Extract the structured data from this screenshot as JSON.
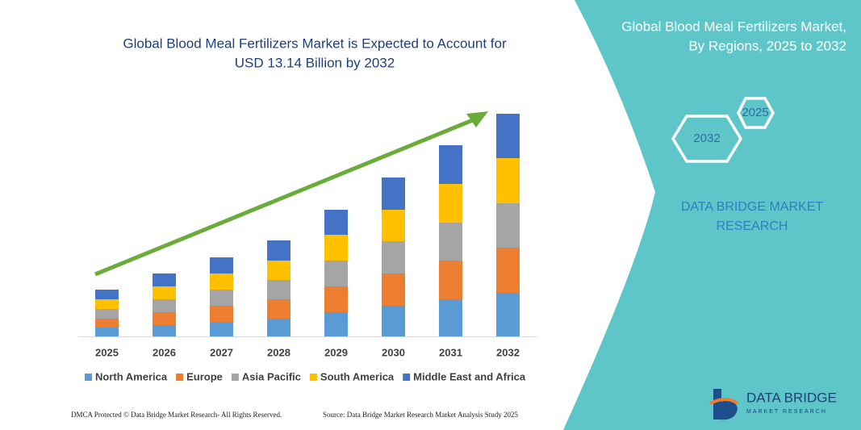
{
  "chart_data": {
    "type": "bar",
    "stacked": true,
    "title_lines": [
      "Global Blood Meal Fertilizers Market is Expected to Account for",
      "USD 13.14 Billion by 2032"
    ],
    "categories": [
      "2025",
      "2026",
      "2027",
      "2028",
      "2029",
      "2030",
      "2031",
      "2032"
    ],
    "series": [
      {
        "name": "North America",
        "color": "#5b9bd5",
        "values": [
          11,
          14,
          18,
          22,
          30,
          38,
          46,
          54
        ]
      },
      {
        "name": "Europe",
        "color": "#ed7d31",
        "values": [
          11,
          16,
          20,
          24,
          32,
          40,
          48,
          56
        ]
      },
      {
        "name": "Asia Pacific",
        "color": "#a5a5a5",
        "values": [
          12,
          16,
          20,
          24,
          32,
          40,
          47,
          55
        ]
      },
      {
        "name": "South America",
        "color": "#ffc000",
        "values": [
          12,
          16,
          20,
          24,
          32,
          39,
          48,
          56
        ]
      },
      {
        "name": "Middle East and Africa",
        "color": "#4472c4",
        "values": [
          12,
          16,
          20,
          25,
          31,
          40,
          48,
          55
        ]
      }
    ],
    "ylim": [
      0,
      276
    ]
  },
  "panel": {
    "title_lines": [
      "Global Blood Meal Fertilizers Market,",
      "By Regions, 2025 to 2032"
    ],
    "hexagons": [
      "2025",
      "2032"
    ],
    "brand_lines": [
      "DATA BRIDGE MARKET",
      "RESEARCH"
    ]
  },
  "logo": {
    "name": "DATA BRIDGE",
    "tagline": "MARKET RESEARCH"
  },
  "footer": {
    "left": "DMCA Protected © Data Bridge Market Research- All Rights Reserved.",
    "right": "Source: Data Bridge Market Research  Market Analysis Study 2025"
  }
}
